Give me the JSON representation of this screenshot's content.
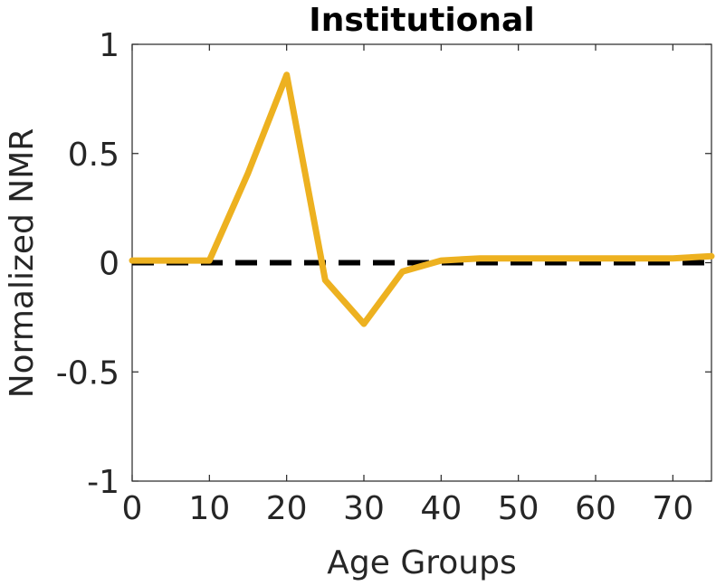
{
  "chart_data": {
    "type": "line",
    "title": "Institutional",
    "xlabel": "Age Groups",
    "ylabel": "Normalized NMR",
    "xlim": [
      0,
      75
    ],
    "ylim": [
      -1,
      1
    ],
    "xticks": [
      0,
      10,
      20,
      30,
      40,
      50,
      60,
      70
    ],
    "yticks": [
      1,
      0.5,
      0,
      -0.5,
      -1
    ],
    "x_tick_labels": [
      "0",
      "10",
      "20",
      "30",
      "40",
      "50",
      "60",
      "70"
    ],
    "y_tick_labels": [
      "1",
      "0.5",
      "0",
      "-0.5",
      "-1"
    ],
    "grid": false,
    "reference_line": {
      "y": 0,
      "style": "dashed",
      "color": "#000000"
    },
    "series": [
      {
        "color": "#EDB120",
        "x": [
          0,
          5,
          10,
          15,
          20,
          25,
          30,
          35,
          40,
          45,
          50,
          55,
          60,
          65,
          70,
          75
        ],
        "y": [
          0.01,
          0.01,
          0.01,
          0.41,
          0.86,
          -0.08,
          -0.28,
          -0.04,
          0.01,
          0.02,
          0.02,
          0.02,
          0.02,
          0.02,
          0.02,
          0.03
        ]
      }
    ]
  }
}
